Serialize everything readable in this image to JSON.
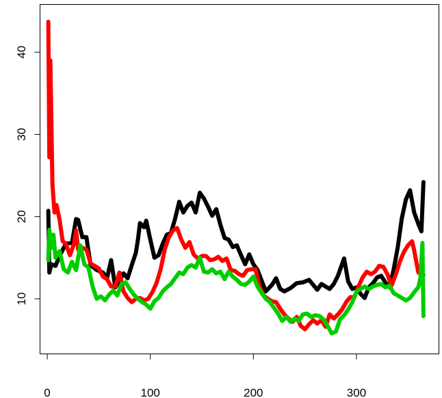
{
  "chart_data": {
    "type": "line",
    "title": "",
    "xlabel": "",
    "ylabel": "",
    "xlim": [
      -7,
      380
    ],
    "ylim": [
      3.3,
      45.8
    ],
    "x_ticks": [
      0,
      100,
      200,
      300
    ],
    "y_ticks": [
      10,
      20,
      30,
      40
    ],
    "x_tick_labels": [
      "0",
      "100",
      "200",
      "300"
    ],
    "y_tick_labels": [
      "10",
      "20",
      "30",
      "40"
    ],
    "grid": false,
    "legend": "none",
    "series": [
      {
        "color": "#000000",
        "points": [
          [
            1,
            20.7
          ],
          [
            2,
            13.2
          ],
          [
            4,
            14.2
          ],
          [
            8,
            14.0
          ],
          [
            12,
            15.2
          ],
          [
            18,
            16.7
          ],
          [
            24,
            16.8
          ],
          [
            28,
            19.7
          ],
          [
            30,
            19.6
          ],
          [
            34,
            17.5
          ],
          [
            38,
            17.5
          ],
          [
            42,
            14.1
          ],
          [
            48,
            13.5
          ],
          [
            54,
            13.2
          ],
          [
            58,
            12.5
          ],
          [
            62,
            14.7
          ],
          [
            66,
            11.4
          ],
          [
            70,
            12.2
          ],
          [
            74,
            13.1
          ],
          [
            78,
            12.5
          ],
          [
            82,
            14.1
          ],
          [
            86,
            15.6
          ],
          [
            88,
            17.2
          ],
          [
            90,
            19.2
          ],
          [
            94,
            18.7
          ],
          [
            96,
            19.5
          ],
          [
            100,
            17.2
          ],
          [
            104,
            15.0
          ],
          [
            108,
            15.3
          ],
          [
            112,
            16.7
          ],
          [
            116,
            17.8
          ],
          [
            120,
            18.0
          ],
          [
            124,
            19.7
          ],
          [
            128,
            21.8
          ],
          [
            132,
            20.5
          ],
          [
            136,
            21.3
          ],
          [
            140,
            21.7
          ],
          [
            144,
            20.5
          ],
          [
            148,
            22.9
          ],
          [
            152,
            22.2
          ],
          [
            156,
            21.2
          ],
          [
            160,
            20.1
          ],
          [
            164,
            20.9
          ],
          [
            168,
            19.0
          ],
          [
            172,
            17.4
          ],
          [
            176,
            17.2
          ],
          [
            180,
            16.3
          ],
          [
            184,
            16.5
          ],
          [
            188,
            15.3
          ],
          [
            192,
            14.2
          ],
          [
            196,
            15.4
          ],
          [
            200,
            14.2
          ],
          [
            204,
            13.5
          ],
          [
            208,
            12.2
          ],
          [
            212,
            10.9
          ],
          [
            218,
            11.7
          ],
          [
            222,
            12.5
          ],
          [
            226,
            11.2
          ],
          [
            230,
            10.9
          ],
          [
            236,
            11.3
          ],
          [
            242,
            11.9
          ],
          [
            248,
            12.0
          ],
          [
            254,
            12.3
          ],
          [
            258,
            11.7
          ],
          [
            262,
            11.1
          ],
          [
            266,
            11.8
          ],
          [
            270,
            11.5
          ],
          [
            274,
            11.2
          ],
          [
            278,
            11.8
          ],
          [
            282,
            12.8
          ],
          [
            286,
            14.2
          ],
          [
            288,
            14.9
          ],
          [
            292,
            12.1
          ],
          [
            296,
            11.2
          ],
          [
            300,
            11.4
          ],
          [
            304,
            10.6
          ],
          [
            308,
            10.1
          ],
          [
            312,
            11.4
          ],
          [
            316,
            11.9
          ],
          [
            320,
            12.6
          ],
          [
            324,
            12.8
          ],
          [
            328,
            12.0
          ],
          [
            332,
            11.4
          ],
          [
            336,
            13.5
          ],
          [
            340,
            16.2
          ],
          [
            344,
            19.8
          ],
          [
            348,
            22.1
          ],
          [
            352,
            23.2
          ],
          [
            356,
            20.5
          ],
          [
            360,
            19.1
          ],
          [
            363,
            18.2
          ],
          [
            365,
            24.2
          ]
        ]
      },
      {
        "color": "#ff0000",
        "points": [
          [
            1,
            43.7
          ],
          [
            2,
            27.2
          ],
          [
            3,
            39.0
          ],
          [
            5,
            24.0
          ],
          [
            7,
            20.5
          ],
          [
            9,
            21.4
          ],
          [
            12,
            19.6
          ],
          [
            15,
            17.0
          ],
          [
            18,
            16.7
          ],
          [
            22,
            15.3
          ],
          [
            26,
            16.7
          ],
          [
            28,
            18.3
          ],
          [
            30,
            16.0
          ],
          [
            34,
            16.2
          ],
          [
            38,
            16.0
          ],
          [
            42,
            14.3
          ],
          [
            46,
            14.0
          ],
          [
            50,
            13.7
          ],
          [
            54,
            12.7
          ],
          [
            58,
            12.4
          ],
          [
            62,
            11.5
          ],
          [
            66,
            11.5
          ],
          [
            70,
            13.2
          ],
          [
            74,
            10.9
          ],
          [
            78,
            10.1
          ],
          [
            82,
            9.6
          ],
          [
            86,
            10.0
          ],
          [
            90,
            10.1
          ],
          [
            94,
            9.8
          ],
          [
            98,
            10.0
          ],
          [
            102,
            10.8
          ],
          [
            106,
            11.9
          ],
          [
            110,
            13.6
          ],
          [
            114,
            16.0
          ],
          [
            118,
            17.5
          ],
          [
            122,
            18.3
          ],
          [
            126,
            18.6
          ],
          [
            130,
            17.2
          ],
          [
            134,
            16.2
          ],
          [
            138,
            16.9
          ],
          [
            142,
            15.4
          ],
          [
            146,
            14.9
          ],
          [
            150,
            15.2
          ],
          [
            154,
            15.2
          ],
          [
            158,
            14.7
          ],
          [
            162,
            14.8
          ],
          [
            166,
            15.1
          ],
          [
            170,
            14.6
          ],
          [
            174,
            14.9
          ],
          [
            178,
            13.5
          ],
          [
            182,
            13.4
          ],
          [
            186,
            13.0
          ],
          [
            190,
            12.8
          ],
          [
            194,
            13.5
          ],
          [
            198,
            13.6
          ],
          [
            202,
            13.6
          ],
          [
            206,
            11.5
          ],
          [
            210,
            10.4
          ],
          [
            214,
            10.0
          ],
          [
            218,
            9.7
          ],
          [
            222,
            9.6
          ],
          [
            226,
            8.8
          ],
          [
            230,
            8.1
          ],
          [
            234,
            7.6
          ],
          [
            238,
            7.2
          ],
          [
            242,
            7.8
          ],
          [
            246,
            6.7
          ],
          [
            250,
            6.3
          ],
          [
            254,
            6.9
          ],
          [
            258,
            7.4
          ],
          [
            262,
            7.0
          ],
          [
            266,
            7.4
          ],
          [
            270,
            6.6
          ],
          [
            274,
            8.1
          ],
          [
            278,
            7.6
          ],
          [
            282,
            8.1
          ],
          [
            286,
            8.7
          ],
          [
            290,
            9.6
          ],
          [
            294,
            10.2
          ],
          [
            298,
            10.2
          ],
          [
            302,
            11.5
          ],
          [
            306,
            12.6
          ],
          [
            310,
            13.3
          ],
          [
            314,
            13.0
          ],
          [
            318,
            13.3
          ],
          [
            322,
            14.0
          ],
          [
            326,
            13.9
          ],
          [
            330,
            13.0
          ],
          [
            334,
            11.6
          ],
          [
            338,
            12.9
          ],
          [
            342,
            14.5
          ],
          [
            346,
            15.7
          ],
          [
            350,
            16.5
          ],
          [
            354,
            17.0
          ],
          [
            356,
            15.9
          ],
          [
            360,
            13.2
          ],
          [
            363,
            13.0
          ],
          [
            365,
            12.9
          ]
        ]
      },
      {
        "color": "#00cd00",
        "points": [
          [
            1,
            14.7
          ],
          [
            2,
            18.4
          ],
          [
            4,
            16.2
          ],
          [
            6,
            17.8
          ],
          [
            8,
            15.0
          ],
          [
            12,
            15.8
          ],
          [
            16,
            13.6
          ],
          [
            20,
            13.2
          ],
          [
            24,
            14.5
          ],
          [
            28,
            13.5
          ],
          [
            32,
            16.5
          ],
          [
            36,
            14.2
          ],
          [
            40,
            13.8
          ],
          [
            44,
            11.5
          ],
          [
            48,
            10.0
          ],
          [
            52,
            10.3
          ],
          [
            56,
            9.8
          ],
          [
            60,
            10.5
          ],
          [
            64,
            11.0
          ],
          [
            68,
            10.4
          ],
          [
            72,
            11.8
          ],
          [
            76,
            12.0
          ],
          [
            80,
            11.2
          ],
          [
            84,
            10.5
          ],
          [
            88,
            10.0
          ],
          [
            92,
            9.6
          ],
          [
            96,
            9.3
          ],
          [
            100,
            8.8
          ],
          [
            104,
            9.7
          ],
          [
            108,
            10.1
          ],
          [
            112,
            10.9
          ],
          [
            116,
            11.4
          ],
          [
            120,
            11.8
          ],
          [
            124,
            12.5
          ],
          [
            128,
            13.2
          ],
          [
            132,
            13.0
          ],
          [
            136,
            13.8
          ],
          [
            140,
            14.1
          ],
          [
            144,
            13.8
          ],
          [
            148,
            15.0
          ],
          [
            152,
            13.3
          ],
          [
            156,
            13.2
          ],
          [
            160,
            13.6
          ],
          [
            164,
            13.1
          ],
          [
            168,
            13.3
          ],
          [
            172,
            12.4
          ],
          [
            176,
            13.3
          ],
          [
            180,
            12.7
          ],
          [
            184,
            12.3
          ],
          [
            188,
            11.8
          ],
          [
            192,
            11.7
          ],
          [
            196,
            12.1
          ],
          [
            200,
            12.7
          ],
          [
            204,
            11.5
          ],
          [
            208,
            10.7
          ],
          [
            212,
            10.0
          ],
          [
            216,
            9.6
          ],
          [
            220,
            8.9
          ],
          [
            224,
            8.2
          ],
          [
            228,
            7.3
          ],
          [
            232,
            7.8
          ],
          [
            236,
            7.2
          ],
          [
            240,
            7.6
          ],
          [
            244,
            7.3
          ],
          [
            248,
            8.1
          ],
          [
            252,
            8.2
          ],
          [
            256,
            7.8
          ],
          [
            260,
            8.0
          ],
          [
            264,
            7.9
          ],
          [
            268,
            7.5
          ],
          [
            272,
            6.7
          ],
          [
            276,
            5.8
          ],
          [
            280,
            6.0
          ],
          [
            284,
            7.5
          ],
          [
            288,
            8.0
          ],
          [
            292,
            8.7
          ],
          [
            296,
            9.6
          ],
          [
            300,
            10.9
          ],
          [
            304,
            11.2
          ],
          [
            308,
            11.5
          ],
          [
            312,
            11.2
          ],
          [
            316,
            11.5
          ],
          [
            320,
            11.7
          ],
          [
            324,
            11.8
          ],
          [
            328,
            11.4
          ],
          [
            332,
            11.6
          ],
          [
            336,
            10.7
          ],
          [
            340,
            10.4
          ],
          [
            344,
            10.1
          ],
          [
            348,
            9.8
          ],
          [
            352,
            10.1
          ],
          [
            356,
            10.8
          ],
          [
            360,
            11.4
          ],
          [
            362,
            12.5
          ],
          [
            364,
            16.8
          ],
          [
            365,
            7.9
          ]
        ]
      }
    ]
  }
}
